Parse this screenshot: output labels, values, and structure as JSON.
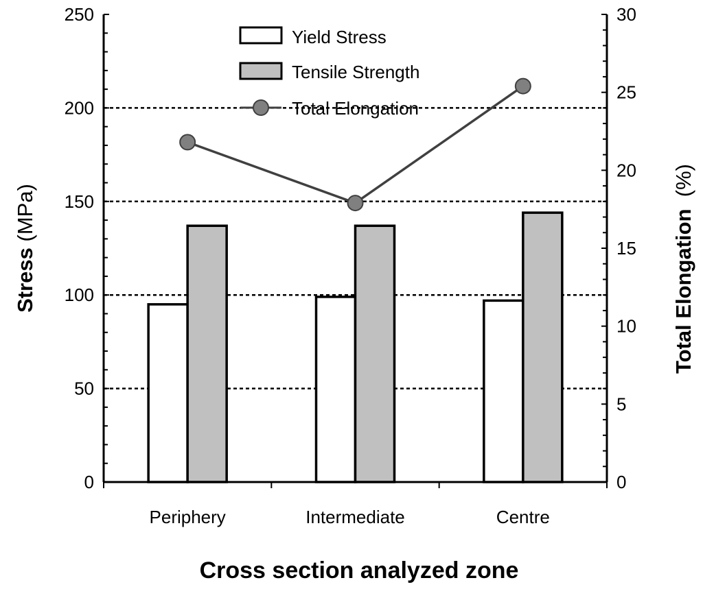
{
  "chart_data": {
    "type": "bar",
    "categories": [
      "Periphery",
      "Intermediate",
      "Centre"
    ],
    "series": [
      {
        "name": "Yield Stress",
        "type": "bar",
        "axis": "left",
        "color": "#ffffff",
        "values": [
          95,
          99,
          97
        ]
      },
      {
        "name": "Tensile Strength",
        "type": "bar",
        "axis": "left",
        "color": "#c0c0c0",
        "values": [
          137,
          137,
          144
        ]
      },
      {
        "name": "Total Elongation",
        "type": "line",
        "axis": "right",
        "color": "#404040",
        "marker_color": "#808080",
        "values": [
          21.8,
          17.9,
          25.4
        ]
      }
    ],
    "xlabel": "Cross section analyzed zone",
    "ylabel": {
      "bold": "Stress",
      "normal": " (MPa)"
    },
    "y2label": {
      "bold": "Total Elongation",
      "normal": "  (%)"
    },
    "ylim": [
      0,
      250
    ],
    "y2lim": [
      0,
      30
    ],
    "yticks": [
      0,
      50,
      100,
      150,
      200,
      250
    ],
    "y2ticks": [
      0,
      5,
      10,
      15,
      20,
      25,
      30
    ],
    "grid": "horizontal dotted",
    "legend_position": "top-center"
  }
}
